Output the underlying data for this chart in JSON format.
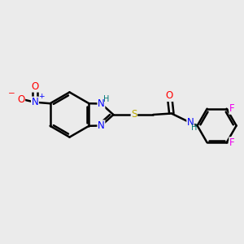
{
  "background_color": "#ebebeb",
  "bond_color": "#000000",
  "bond_width": 1.8,
  "atom_colors": {
    "N": "#0000ff",
    "O": "#ff0000",
    "S": "#bbaa00",
    "F": "#ee00ee",
    "H_label": "#007777",
    "C": "#000000"
  },
  "font_size_atom": 8.5,
  "font_size_small": 7.0,
  "fig_width": 3.0,
  "fig_height": 3.0,
  "dpi": 100
}
